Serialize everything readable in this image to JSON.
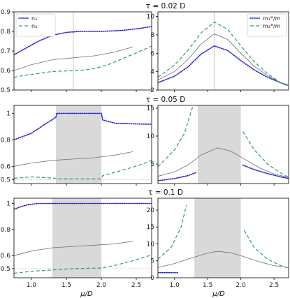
{
  "colors": {
    "blue": "#1f1fd6",
    "green": "#2ca25f",
    "gray": "#707070",
    "band": "#d9d9d9"
  },
  "row_titles": [
    "τ = 0.02 D",
    "τ = 0.05 D",
    "τ = 0.1 D"
  ],
  "shared_xlabel": "μ/D",
  "chart_data": [
    {
      "type": "line",
      "panel": "row1-left",
      "xlim": [
        0.75,
        2.72
      ],
      "ylim": [
        0.5,
        0.9
      ],
      "xticks": [
        1.0,
        1.5,
        2.0,
        2.5
      ],
      "yticks": [
        0.5,
        0.6,
        0.7,
        0.8,
        0.9
      ],
      "vline": 1.6,
      "band": null,
      "legend": {
        "position": "top-left"
      },
      "series": [
        {
          "name": "n₁",
          "color": "blue",
          "style": "dotted",
          "segments": [
            [
              [
                0.75,
                0.68
              ],
              [
                0.9,
                0.71
              ],
              [
                1.1,
                0.75
              ],
              [
                1.3,
                0.78
              ],
              [
                1.5,
                0.795
              ],
              [
                1.7,
                0.8
              ],
              [
                2.0,
                0.8
              ],
              [
                2.3,
                0.805
              ],
              [
                2.55,
                0.815
              ],
              [
                2.72,
                0.825
              ]
            ]
          ]
        },
        {
          "name": "n₂",
          "color": "green",
          "style": "dashed",
          "segments": [
            [
              [
                0.75,
                0.565
              ],
              [
                0.9,
                0.575
              ],
              [
                1.1,
                0.585
              ],
              [
                1.3,
                0.595
              ],
              [
                1.5,
                0.598
              ],
              [
                1.7,
                0.6
              ],
              [
                1.9,
                0.61
              ],
              [
                2.1,
                0.63
              ],
              [
                2.3,
                0.66
              ],
              [
                2.5,
                0.69
              ],
              [
                2.72,
                0.725
              ]
            ]
          ]
        },
        {
          "name": "",
          "color": "gray",
          "style": "solid",
          "segments": [
            [
              [
                0.75,
                0.6
              ],
              [
                1.0,
                0.63
              ],
              [
                1.3,
                0.655
              ],
              [
                1.6,
                0.665
              ],
              [
                1.9,
                0.675
              ],
              [
                2.2,
                0.695
              ],
              [
                2.45,
                0.72
              ]
            ]
          ]
        }
      ]
    },
    {
      "type": "line",
      "panel": "row1-right",
      "xlim": [
        0.75,
        2.72
      ],
      "ylim": [
        2,
        10.5
      ],
      "xticks": [
        1.0,
        1.5,
        2.0,
        2.5
      ],
      "yticks": [
        2,
        4,
        6,
        8,
        10
      ],
      "vline": 1.6,
      "band": null,
      "legend": {
        "position": "top-right"
      },
      "series": [
        {
          "name": "m₁*/m",
          "color": "blue",
          "style": "dotted",
          "segments": [
            [
              [
                0.75,
                2.8
              ],
              [
                1.0,
                3.5
              ],
              [
                1.2,
                4.5
              ],
              [
                1.4,
                5.9
              ],
              [
                1.6,
                6.8
              ],
              [
                1.8,
                6.3
              ],
              [
                2.0,
                5.2
              ],
              [
                2.2,
                4.2
              ],
              [
                2.4,
                3.4
              ],
              [
                2.6,
                2.8
              ],
              [
                2.72,
                2.5
              ]
            ]
          ]
        },
        {
          "name": "m₂*/m",
          "color": "green",
          "style": "dashed",
          "segments": [
            [
              [
                0.75,
                3.4
              ],
              [
                1.0,
                4.7
              ],
              [
                1.2,
                6.3
              ],
              [
                1.4,
                8.2
              ],
              [
                1.6,
                9.4
              ],
              [
                1.8,
                8.6
              ],
              [
                2.0,
                6.8
              ],
              [
                2.2,
                5.1
              ],
              [
                2.4,
                3.8
              ],
              [
                2.6,
                2.8
              ],
              [
                2.72,
                2.4
              ]
            ]
          ]
        },
        {
          "name": "",
          "color": "gray",
          "style": "solid",
          "segments": [
            [
              [
                0.75,
                3.1
              ],
              [
                1.0,
                4.0
              ],
              [
                1.2,
                5.3
              ],
              [
                1.4,
                7.0
              ],
              [
                1.6,
                8.1
              ],
              [
                1.8,
                7.5
              ],
              [
                2.0,
                6.0
              ],
              [
                2.2,
                4.6
              ],
              [
                2.4,
                3.6
              ],
              [
                2.6,
                2.8
              ],
              [
                2.72,
                2.5
              ]
            ]
          ]
        }
      ]
    },
    {
      "type": "line",
      "panel": "row2-left",
      "xlim": [
        0.75,
        2.72
      ],
      "ylim": [
        0.47,
        1.06
      ],
      "xticks": [
        1.0,
        1.5,
        2.0,
        2.5
      ],
      "yticks": [
        0.5,
        0.6,
        0.8,
        1.0
      ],
      "vline": null,
      "band": [
        1.35,
        2.0
      ],
      "hline": 0.5,
      "series": [
        {
          "name": "",
          "color": "blue",
          "style": "dotted",
          "segments": [
            [
              [
                0.75,
                0.8
              ],
              [
                1.0,
                0.85
              ],
              [
                1.2,
                0.92
              ],
              [
                1.35,
                0.97
              ],
              [
                1.36,
                1.0
              ],
              [
                2.0,
                1.0
              ],
              [
                2.02,
                0.95
              ],
              [
                2.2,
                0.925
              ],
              [
                2.5,
                0.92
              ],
              [
                2.72,
                0.918
              ]
            ]
          ]
        },
        {
          "name": "",
          "color": "green",
          "style": "dashed",
          "segments": [
            [
              [
                0.75,
                0.51
              ],
              [
                1.0,
                0.52
              ],
              [
                1.2,
                0.515
              ],
              [
                1.35,
                0.51
              ],
              [
                1.36,
                0.505
              ],
              [
                2.0,
                0.505
              ],
              [
                2.02,
                0.53
              ],
              [
                2.3,
                0.57
              ],
              [
                2.55,
                0.61
              ],
              [
                2.72,
                0.645
              ]
            ]
          ]
        },
        {
          "name": "",
          "color": "gray",
          "style": "solid",
          "segments": [
            [
              [
                0.75,
                0.6
              ],
              [
                1.0,
                0.625
              ],
              [
                1.3,
                0.645
              ],
              [
                1.6,
                0.655
              ],
              [
                1.9,
                0.665
              ],
              [
                2.2,
                0.685
              ],
              [
                2.45,
                0.71
              ]
            ]
          ]
        }
      ]
    },
    {
      "type": "line",
      "panel": "row2-right",
      "xlim": [
        0.75,
        2.72
      ],
      "ylim": [
        1.5,
        15.5
      ],
      "xticks": [
        1.0,
        1.5,
        2.0,
        2.5
      ],
      "yticks": [
        5,
        10,
        15
      ],
      "vline": null,
      "band": [
        1.35,
        2.0
      ],
      "series": [
        {
          "name": "",
          "color": "blue",
          "style": "dotted",
          "segments": [
            [
              [
                0.75,
                2.0
              ],
              [
                1.0,
                2.4
              ],
              [
                1.2,
                2.9
              ],
              [
                1.33,
                3.5
              ]
            ],
            [
              [
                2.03,
                4.8
              ],
              [
                2.2,
                4.0
              ],
              [
                2.4,
                3.3
              ],
              [
                2.6,
                2.7
              ],
              [
                2.72,
                2.4
              ]
            ]
          ]
        },
        {
          "name": "",
          "color": "green",
          "style": "dashed",
          "segments": [
            [
              [
                0.75,
                4.5
              ],
              [
                1.0,
                7.5
              ],
              [
                1.15,
                10.5
              ],
              [
                1.28,
                15.5
              ]
            ],
            [
              [
                2.03,
                10.8
              ],
              [
                2.2,
                7.6
              ],
              [
                2.4,
                5.0
              ],
              [
                2.6,
                3.4
              ],
              [
                2.72,
                2.6
              ]
            ]
          ]
        },
        {
          "name": "",
          "color": "gray",
          "style": "solid",
          "segments": [
            [
              [
                0.75,
                2.8
              ],
              [
                1.0,
                3.6
              ],
              [
                1.2,
                4.8
              ],
              [
                1.4,
                6.6
              ],
              [
                1.65,
                7.9
              ],
              [
                1.85,
                7.3
              ],
              [
                2.05,
                5.9
              ],
              [
                2.3,
                4.2
              ],
              [
                2.5,
                3.2
              ],
              [
                2.72,
                2.6
              ]
            ]
          ]
        }
      ]
    },
    {
      "type": "line",
      "panel": "row3-left",
      "xlim": [
        0.75,
        2.72
      ],
      "ylim": [
        0.43,
        1.04
      ],
      "xticks": [
        1.0,
        1.5,
        2.0,
        2.5
      ],
      "yticks": [
        0.5,
        0.6,
        0.8,
        1.0
      ],
      "vline": null,
      "band": [
        1.3,
        2.0
      ],
      "hline": 0.5,
      "series": [
        {
          "name": "",
          "color": "blue",
          "style": "dotted",
          "segments": [
            [
              [
                0.75,
                0.955
              ],
              [
                0.85,
                0.975
              ],
              [
                0.95,
                0.99
              ],
              [
                1.1,
                1.0
              ],
              [
                2.72,
                1.0
              ]
            ]
          ]
        },
        {
          "name": "",
          "color": "green",
          "style": "dashed",
          "segments": [
            [
              [
                0.75,
                0.465
              ],
              [
                1.0,
                0.48
              ],
              [
                1.3,
                0.49
              ],
              [
                1.6,
                0.5
              ],
              [
                2.0,
                0.505
              ],
              [
                2.2,
                0.525
              ],
              [
                2.45,
                0.56
              ],
              [
                2.72,
                0.605
              ]
            ]
          ]
        },
        {
          "name": "",
          "color": "gray",
          "style": "solid",
          "segments": [
            [
              [
                0.75,
                0.6
              ],
              [
                1.0,
                0.635
              ],
              [
                1.3,
                0.66
              ],
              [
                1.6,
                0.67
              ],
              [
                1.9,
                0.68
              ],
              [
                2.2,
                0.69
              ],
              [
                2.45,
                0.71
              ]
            ]
          ]
        }
      ]
    },
    {
      "type": "line",
      "panel": "row3-right",
      "xlim": [
        0.75,
        2.72
      ],
      "ylim": [
        0,
        23.5
      ],
      "xticks": [
        1.0,
        1.5,
        2.0,
        2.5
      ],
      "yticks": [
        0,
        5,
        10,
        15,
        20
      ],
      "vline": null,
      "band": [
        1.3,
        2.0
      ],
      "series": [
        {
          "name": "",
          "color": "blue",
          "style": "dotted",
          "segments": [
            [
              [
                0.75,
                1.5
              ],
              [
                1.05,
                1.5
              ]
            ]
          ]
        },
        {
          "name": "",
          "color": "green",
          "style": "dashed",
          "segments": [
            [
              [
                0.75,
                5.5
              ],
              [
                0.95,
                9.0
              ],
              [
                1.1,
                15.0
              ],
              [
                1.18,
                21.5
              ]
            ],
            [
              [
                2.05,
                14.0
              ],
              [
                2.2,
                9.0
              ],
              [
                2.4,
                5.5
              ],
              [
                2.6,
                3.6
              ],
              [
                2.72,
                2.8
              ]
            ]
          ]
        },
        {
          "name": "",
          "color": "gray",
          "style": "solid",
          "segments": [
            [
              [
                0.75,
                3.0
              ],
              [
                1.0,
                4.2
              ],
              [
                1.25,
                5.8
              ],
              [
                1.5,
                7.3
              ],
              [
                1.65,
                7.8
              ],
              [
                1.85,
                7.4
              ],
              [
                2.05,
                6.2
              ],
              [
                2.3,
                4.6
              ],
              [
                2.5,
                3.6
              ],
              [
                2.72,
                3.0
              ]
            ]
          ]
        }
      ]
    }
  ]
}
